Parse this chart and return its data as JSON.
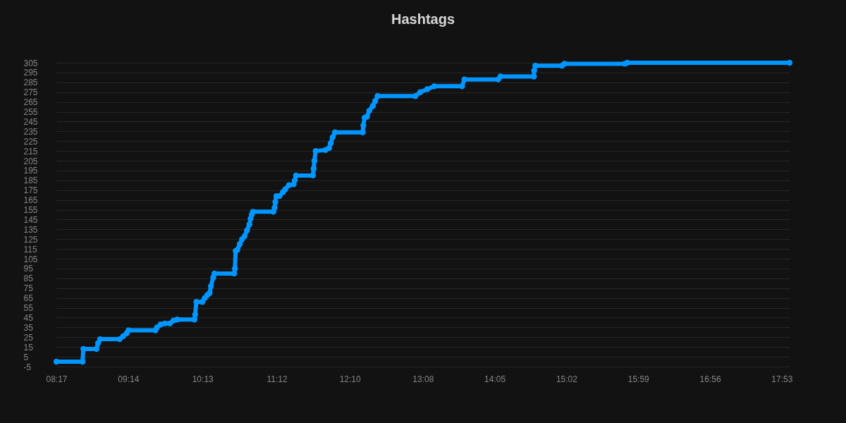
{
  "chart_data": {
    "type": "line",
    "title": "Hashtags",
    "x": [
      8.2833,
      8.629,
      8.64,
      8.813,
      8.835,
      8.862,
      9.12,
      9.167,
      9.213,
      9.238,
      9.595,
      9.614,
      9.662,
      9.719,
      9.785,
      9.833,
      9.881,
      10.11,
      10.12,
      10.136,
      10.215,
      10.247,
      10.28,
      10.311,
      10.328,
      10.359,
      10.375,
      10.636,
      10.646,
      10.655,
      10.677,
      10.71,
      10.741,
      10.773,
      10.806,
      10.837,
      10.853,
      10.869,
      10.885,
      11.155,
      11.171,
      11.181,
      11.194,
      11.235,
      11.282,
      11.313,
      11.36,
      11.423,
      11.438,
      11.454,
      11.679,
      11.688,
      11.698,
      11.714,
      11.845,
      11.892,
      11.914,
      11.939,
      11.97,
      12.337,
      12.346,
      12.362,
      12.393,
      12.424,
      12.471,
      12.503,
      12.534,
      13.035,
      13.098,
      13.191,
      13.283,
      13.652,
      13.683,
      14.13,
      14.16,
      14.603,
      14.606,
      14.622,
      14.975,
      15.007,
      15.807,
      15.837,
      17.987
    ],
    "series": [
      {
        "color": "#0096ff",
        "values": [
          0,
          0,
          13,
          13,
          19,
          23,
          23,
          26,
          29,
          32,
          32,
          35,
          38,
          39,
          39,
          42,
          43,
          43,
          48,
          61,
          61,
          65,
          68,
          70,
          77,
          86,
          90,
          90,
          95,
          113,
          114,
          120,
          125,
          128,
          134,
          140,
          146,
          150,
          153,
          153,
          157,
          163,
          169,
          169,
          173,
          176,
          180,
          181,
          185,
          190,
          190,
          197,
          205,
          215,
          216,
          218,
          223,
          229,
          234,
          234,
          241,
          249,
          250,
          256,
          261,
          266,
          271,
          271,
          275,
          278,
          281,
          281,
          288,
          288,
          291,
          291,
          297,
          302,
          302,
          304,
          304,
          305,
          305
        ]
      }
    ],
    "xlim": [
      8.2833,
      17.987
    ],
    "xticks": [
      {
        "value": 8.2833,
        "label": "08:17"
      },
      {
        "value": 9.2333,
        "label": "09:14"
      },
      {
        "value": 10.2167,
        "label": "10:13"
      },
      {
        "value": 11.2,
        "label": "11:12"
      },
      {
        "value": 12.1667,
        "label": "12:10"
      },
      {
        "value": 13.1333,
        "label": "13:08"
      },
      {
        "value": 14.0833,
        "label": "14:05"
      },
      {
        "value": 15.0333,
        "label": "15:02"
      },
      {
        "value": 15.9833,
        "label": "15:59"
      },
      {
        "value": 16.9333,
        "label": "16:56"
      },
      {
        "value": 17.8833,
        "label": "17:53"
      }
    ],
    "ylim": [
      -5,
      305
    ],
    "yticks": [
      -5,
      5,
      15,
      25,
      35,
      45,
      55,
      65,
      75,
      85,
      95,
      105,
      115,
      125,
      135,
      145,
      155,
      165,
      175,
      185,
      195,
      205,
      215,
      225,
      235,
      245,
      255,
      265,
      275,
      285,
      295,
      305
    ],
    "grid": "y",
    "marker": "circle",
    "line_style": "solid"
  }
}
